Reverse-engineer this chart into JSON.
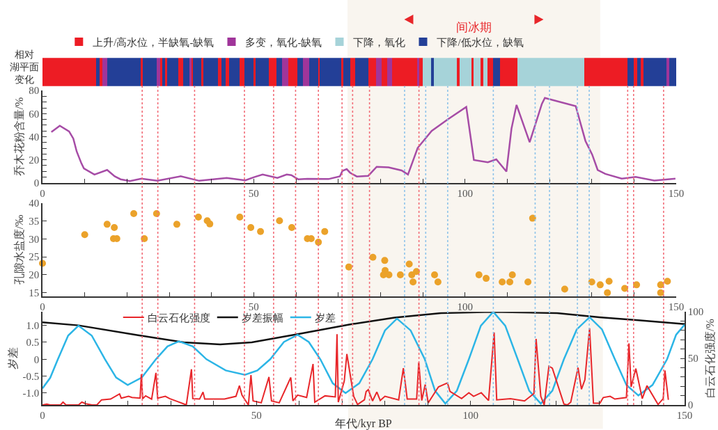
{
  "chart_data": [
    {
      "type": "bar",
      "orientation": "horizontal",
      "stacked": true,
      "ylabel": "相对湖平面变化",
      "xlim": [
        0,
        150
      ],
      "legend": "top",
      "tick_labels": false,
      "categories": [
        null
      ],
      "series": [
        {
          "name": "上升/高水位，半缺氧-缺氧",
          "color": "#ed1c24",
          "values": [
            12.7
          ]
        },
        {
          "color": "#233f97",
          "values": [
            0.8
          ]
        },
        {
          "color": "#ed1c24",
          "values": [
            0.7
          ]
        },
        {
          "name": "多变，氧化-缺氧",
          "color": "#a0359a",
          "values": [
            1.1
          ]
        },
        {
          "color": "#233f97",
          "values": [
            7.9
          ]
        },
        {
          "color": "#ed1c24",
          "values": [
            0.6
          ]
        },
        {
          "color": "#233f97",
          "values": [
            3.3
          ]
        },
        {
          "color": "#a0359a",
          "values": [
            0.7
          ]
        },
        {
          "color": "#ed1c24",
          "values": [
            0.6
          ]
        },
        {
          "color": "#233f97",
          "values": [
            0.6
          ]
        },
        {
          "color": "#ed1c24",
          "values": [
            0.5
          ]
        },
        {
          "color": "#233f97",
          "values": [
            2.7
          ]
        },
        {
          "color": "#ed1c24",
          "values": [
            1.1
          ]
        },
        {
          "color": "#233f97",
          "values": [
            1.4
          ]
        },
        {
          "color": "#a0359a",
          "values": [
            0.5
          ]
        },
        {
          "color": "#ed1c24",
          "values": [
            0.4
          ]
        },
        {
          "color": "#233f97",
          "values": [
            2.1
          ]
        },
        {
          "color": "#ed1c24",
          "values": [
            0.3
          ]
        },
        {
          "color": "#233f97",
          "values": [
            3.5
          ]
        },
        {
          "color": "#ed1c24",
          "values": [
            0.8
          ]
        },
        {
          "color": "#233f97",
          "values": [
            1.1
          ]
        },
        {
          "color": "#ed1c24",
          "values": [
            0.8
          ]
        },
        {
          "color": "#233f97",
          "values": [
            2.5
          ]
        },
        {
          "color": "#ed1c24",
          "values": [
            1.1
          ]
        },
        {
          "color": "#233f97",
          "values": [
            2.2
          ]
        },
        {
          "color": "#ed1c24",
          "values": [
            0.5
          ]
        },
        {
          "color": "#233f97",
          "values": [
            3.1
          ]
        },
        {
          "color": "#ed1c24",
          "values": [
            1.8
          ]
        },
        {
          "color": "#233f97",
          "values": [
            1.3
          ]
        },
        {
          "color": "#a0359a",
          "values": [
            1.4
          ]
        },
        {
          "color": "#ed1c24",
          "values": [
            2.2
          ]
        },
        {
          "color": "#233f97",
          "values": [
            1.3
          ]
        },
        {
          "color": "#a0359a",
          "values": [
            1.6
          ]
        },
        {
          "color": "#233f97",
          "values": [
            2.0
          ]
        },
        {
          "color": "#ed1c24",
          "values": [
            0.4
          ]
        },
        {
          "color": "#233f97",
          "values": [
            5.1
          ]
        },
        {
          "color": "#ed1c24",
          "values": [
            0.5
          ]
        },
        {
          "color": "#233f97",
          "values": [
            1.7
          ]
        },
        {
          "color": "#ed1c24",
          "values": [
            1.1
          ]
        },
        {
          "color": "#233f97",
          "values": [
            3.2
          ]
        },
        {
          "color": "#ed1c24",
          "values": [
            1.7
          ]
        },
        {
          "color": "#a0359a",
          "values": [
            1.4
          ]
        },
        {
          "color": "#ed1c24",
          "values": [
            1.3
          ]
        },
        {
          "color": "#a0359a",
          "values": [
            1.1
          ]
        },
        {
          "color": "#ed1c24",
          "values": [
            6.0
          ]
        },
        {
          "color": "#a0359a",
          "values": [
            0.5
          ]
        },
        {
          "color": "#ed1c24",
          "values": [
            0.8
          ]
        },
        {
          "name": "下降，氧化",
          "color": "#a6d3d9",
          "values": [
            2.0
          ]
        },
        {
          "name": "下降/低水位，缺氧",
          "color": "#233f97",
          "values": [
            0.7
          ]
        },
        {
          "color": "#a6d3d9",
          "values": [
            5.3
          ]
        },
        {
          "color": "#ed1c24",
          "values": [
            0.7
          ]
        },
        {
          "color": "#a6d3d9",
          "values": [
            2.8
          ]
        },
        {
          "color": "#ed1c24",
          "values": [
            0.5
          ]
        },
        {
          "color": "#a6d3d9",
          "values": [
            1.7
          ]
        },
        {
          "color": "#ed1c24",
          "values": [
            0.6
          ]
        },
        {
          "color": "#a6d3d9",
          "values": [
            1.1
          ]
        },
        {
          "color": "#ed1c24",
          "values": [
            1.3
          ]
        },
        {
          "color": "#233f97",
          "values": [
            1.6
          ]
        },
        {
          "color": "#ed1c24",
          "values": [
            4.1
          ]
        },
        {
          "color": "#a6d3d9",
          "values": [
            15.9
          ]
        },
        {
          "color": "#ed1c24",
          "values": [
            10.2
          ]
        },
        {
          "color": "#233f97",
          "values": [
            1.5
          ]
        },
        {
          "color": "#ed1c24",
          "values": [
            0.8
          ]
        },
        {
          "color": "#233f97",
          "values": [
            0.8
          ]
        },
        {
          "color": "#ed1c24",
          "values": [
            0.7
          ]
        },
        {
          "color": "#233f97",
          "values": [
            5.3
          ]
        },
        {
          "color": "#a0359a",
          "values": [
            0.8
          ]
        },
        {
          "color": "#233f97",
          "values": [
            1.6
          ]
        }
      ],
      "bands": [
        {
          "axis": "x",
          "from": 72.2,
          "to": 132,
          "label": "间冰期",
          "color": "#f9f5ef"
        }
      ]
    },
    {
      "type": "line",
      "ylabel": "乔木花粉含量/%",
      "xlim": [
        0,
        150
      ],
      "ylim": [
        0,
        80
      ],
      "xticks": [
        0,
        {
          "value": 10,
          "label": null
        },
        {
          "value": 20,
          "label": null
        },
        {
          "value": 30,
          "label": null
        },
        {
          "value": 40,
          "label": null
        },
        50,
        {
          "value": 60,
          "label": null
        },
        {
          "value": 70,
          "label": null
        },
        {
          "value": 80,
          "label": null
        },
        {
          "value": 90,
          "label": null
        },
        100,
        {
          "value": 110,
          "label": null
        },
        {
          "value": 120,
          "label": null
        },
        {
          "value": 130,
          "label": null
        },
        {
          "value": 140,
          "label": null
        },
        150
      ],
      "yticks": [
        0,
        {
          "value": 5,
          "label": null
        },
        {
          "value": 10,
          "label": null
        },
        {
          "value": 15,
          "label": null
        },
        20,
        {
          "value": 25,
          "label": null
        },
        {
          "value": 30,
          "label": null
        },
        {
          "value": 35,
          "label": null
        },
        40,
        {
          "value": 45,
          "label": null
        },
        {
          "value": 50,
          "label": null
        },
        {
          "value": 55,
          "label": null
        },
        60,
        {
          "value": 65,
          "label": null
        },
        {
          "value": 70,
          "label": null
        },
        {
          "value": 75,
          "label": null
        },
        80
      ],
      "series": [
        {
          "color": "#a64ca6",
          "x": [
            2.1,
            4.1,
            6.3,
            7.3,
            8.1,
            9.2,
            9.8,
            12.3,
            15.3,
            17.1,
            18.5,
            20.7,
            23.4,
            27.2,
            32.7,
            37.1,
            43.6,
            48,
            50.2,
            52.1,
            55.6,
            57.8,
            58.9,
            60.5,
            62.7,
            67.7,
            70.4,
            71,
            72,
            72.8,
            74.4,
            77.1,
            79.1,
            81.9,
            85,
            86.5,
            88.8,
            92.1,
            96,
            100.3,
            102.1,
            105.4,
            107.4,
            109.8,
            111,
            112.2,
            115.3,
            118.2,
            118.9,
            126.2,
            128.5,
            130.1,
            131.4,
            133.2,
            137.1,
            140.4,
            144.8,
            149.8
          ],
          "values": [
            44,
            49.5,
            44.6,
            38.4,
            27.2,
            17,
            12.5,
            7.2,
            11.2,
            5.7,
            3.1,
            1.6,
            3.7,
            1.8,
            5.7,
            1.8,
            4.3,
            2.2,
            5.1,
            7.2,
            4.3,
            7.2,
            6.7,
            3.1,
            3.5,
            3.3,
            5.7,
            10.4,
            11.9,
            8.8,
            5.5,
            6.1,
            13.9,
            13.5,
            10.8,
            7.2,
            30.3,
            45,
            55.2,
            65.8,
            19.8,
            17.8,
            20.4,
            9.8,
            47,
            67.5,
            35.2,
            68.5,
            73.6,
            66.5,
            36.4,
            24.5,
            11.2,
            7.8,
            3.7,
            5.1,
            2,
            3.7
          ]
        }
      ],
      "ref_lines": [
        {
          "axis": "x",
          "value": 23.6,
          "color": "#f26d78",
          "line_style": "dotted"
        },
        {
          "axis": "x",
          "value": 27.3,
          "color": "#f26d78",
          "line_style": "dotted"
        },
        {
          "axis": "x",
          "value": 36.0,
          "color": "#f26d78",
          "line_style": "dotted"
        },
        {
          "axis": "x",
          "value": 47.8,
          "color": "#f26d78",
          "line_style": "dotted"
        },
        {
          "axis": "x",
          "value": 54.7,
          "color": "#f26d78",
          "line_style": "dotted"
        },
        {
          "axis": "x",
          "value": 59.9,
          "color": "#f26d78",
          "line_style": "dotted"
        },
        {
          "axis": "x",
          "value": 65.3,
          "color": "#f26d78",
          "line_style": "dotted"
        },
        {
          "axis": "x",
          "value": 70.9,
          "color": "#f26d78",
          "line_style": "dotted"
        },
        {
          "axis": "x",
          "value": 73.4,
          "color": "#f26d78",
          "line_style": "dotted"
        },
        {
          "axis": "x",
          "value": 77.4,
          "color": "#f26d78",
          "line_style": "dotted"
        },
        {
          "axis": "x",
          "value": 89.1,
          "color": "#f26d78",
          "line_style": "dotted"
        },
        {
          "axis": "x",
          "value": 138.5,
          "color": "#f26d78",
          "line_style": "dotted"
        },
        {
          "axis": "x",
          "value": 139.9,
          "color": "#f26d78",
          "line_style": "dotted"
        },
        {
          "axis": "x",
          "value": 147.0,
          "color": "#f26d78",
          "line_style": "dotted"
        },
        {
          "axis": "x",
          "value": 85.7,
          "color": "#8ec3ea",
          "line_style": "dotted"
        },
        {
          "axis": "x",
          "value": 90.7,
          "color": "#8ec3ea",
          "line_style": "dotted"
        },
        {
          "axis": "x",
          "value": 95.9,
          "color": "#8ec3ea",
          "line_style": "dotted"
        },
        {
          "axis": "x",
          "value": 106.7,
          "color": "#8ec3ea",
          "line_style": "dotted"
        },
        {
          "axis": "x",
          "value": 116.6,
          "color": "#8ec3ea",
          "line_style": "dotted"
        },
        {
          "axis": "x",
          "value": 120.0,
          "color": "#8ec3ea",
          "line_style": "dotted"
        },
        {
          "axis": "x",
          "value": 126.6,
          "color": "#8ec3ea",
          "line_style": "dotted"
        },
        {
          "axis": "x",
          "value": 129.4,
          "color": "#8ec3ea",
          "line_style": "dotted"
        }
      ],
      "bands": [
        {
          "axis": "x",
          "from": 72.2,
          "to": 132,
          "color": "#f9f5ef"
        }
      ]
    },
    {
      "type": "scatter",
      "ylabel": "孔隙水盐度/‰",
      "xlim": [
        0,
        150
      ],
      "ylim": [
        14,
        40
      ],
      "marker": "circle",
      "xticks": [
        0,
        {
          "value": 10,
          "label": null
        },
        {
          "value": 20,
          "label": null
        },
        {
          "value": 30,
          "label": null
        },
        {
          "value": 40,
          "label": null
        },
        50,
        {
          "value": 60,
          "label": null
        },
        {
          "value": 70,
          "label": null
        },
        {
          "value": 80,
          "label": null
        },
        {
          "value": 90,
          "label": null
        },
        100,
        {
          "value": 110,
          "label": null
        },
        {
          "value": 120,
          "label": null
        },
        {
          "value": 130,
          "label": null
        },
        {
          "value": 140,
          "label": null
        },
        150
      ],
      "yticks": [
        15,
        20,
        25,
        30,
        35,
        40
      ],
      "bands": [
        {
          "axis": "x",
          "from": 72.2,
          "to": 132,
          "color": "#f9f5ef"
        }
      ],
      "series": [
        {
          "color": "#eba22a",
          "x": [
            0,
            10,
            15.3,
            17,
            16.8,
            17.6,
            21.6,
            24.1,
            27,
            31.8,
            36.9,
            39,
            39.6,
            46.7,
            49.3,
            51.6,
            56.1,
            59,
            62.7,
            63.6,
            65.3,
            66.8,
            72.5,
            78.2,
            81,
            81.1,
            80.7,
            82,
            84.7,
            86.8,
            87.4,
            87.7,
            88.5,
            92.8,
            93.6,
            103.3,
            105,
            108.8,
            110.6,
            111.2,
            114.9,
            116,
            123.6,
            130,
            132,
            133.7,
            134.1,
            137.8,
            140.6,
            146.3,
            146.3,
            147.9
          ],
          "values": [
            23.2,
            31.2,
            34.1,
            33.2,
            30.1,
            30.1,
            37.1,
            30.1,
            37.1,
            34.1,
            36.1,
            35.1,
            34.2,
            36.1,
            33.2,
            32.1,
            35.1,
            33.2,
            30.1,
            30.1,
            29.1,
            32.1,
            22.2,
            24.9,
            24,
            21.2,
            20,
            20,
            20,
            23,
            20,
            18,
            20.9,
            20,
            18,
            20,
            19,
            18,
            18,
            20,
            18,
            35.8,
            16,
            18,
            17.2,
            15,
            18.2,
            16.2,
            17.2,
            17.2,
            15,
            18.2
          ]
        }
      ]
    },
    {
      "type": "line",
      "ylabel": "岁差",
      "y2label": "白云石化强度/%",
      "xlabel": "年代/kyr BP",
      "xlim": [
        0,
        150
      ],
      "ylim": [
        -1.35,
        1.4
      ],
      "y2lim": [
        0,
        100
      ],
      "legend": "top left",
      "xticks": [
        0,
        {
          "value": 10,
          "label": null
        },
        {
          "value": 20,
          "label": null
        },
        {
          "value": 30,
          "label": null
        },
        {
          "value": 40,
          "label": null
        },
        50,
        {
          "value": 60,
          "label": null
        },
        {
          "value": 70,
          "label": null
        },
        {
          "value": 80,
          "label": null
        },
        {
          "value": 90,
          "label": null
        },
        100,
        {
          "value": 110,
          "label": null
        },
        {
          "value": 120,
          "label": null
        },
        {
          "value": 130,
          "label": null
        },
        {
          "value": 140,
          "label": null
        },
        150
      ],
      "yticks": [
        {
          "value": -1,
          "label": "-1.0"
        },
        -0.5,
        0,
        0.5,
        {
          "value": 1,
          "label": "1.0"
        }
      ],
      "bands": [
        {
          "axis": "x",
          "from": 71.4,
          "to": 130.9,
          "color": "#f9f5ef"
        }
      ],
      "y2ticks": [
        0,
        {
          "value": 10,
          "label": null
        },
        {
          "value": 20,
          "label": null
        },
        {
          "value": 30,
          "label": null
        },
        {
          "value": 40,
          "label": null
        },
        50,
        {
          "value": 60,
          "label": null
        },
        {
          "value": 70,
          "label": null
        },
        {
          "value": 80,
          "label": null
        },
        {
          "value": 90,
          "label": null
        },
        100
      ],
      "series": [
        {
          "name": "白云石化强度",
          "color": "#e8262a",
          "axis": "y2",
          "x": [
            0,
            1,
            1.8,
            4.2,
            4.8,
            5.5,
            8.4,
            9.2,
            10.1,
            11.6,
            12.7,
            13.8,
            15.9,
            18,
            18.4,
            20.1,
            20.9,
            22.8,
            23.1,
            23.4,
            24.1,
            25.5,
            26.5,
            26.9,
            28.7,
            29.7,
            32.9,
            33.6,
            34.8,
            35.1,
            36.7,
            37.5,
            37.9,
            42.5,
            45.2,
            46,
            46.6,
            48.1,
            48.7,
            49.2,
            51.1,
            52.9,
            53.5,
            55.3,
            58,
            58.5,
            59.6,
            61.7,
            63.2,
            63.6,
            66,
            68.4,
            68.8,
            69.1,
            70.5,
            71.1,
            72.7,
            73.6,
            75.2,
            75.6,
            76.1,
            77.1,
            78.1,
            78.9,
            80,
            83.2,
            84.3,
            85.2,
            87.4,
            87.9,
            88.6,
            89.4,
            90.1,
            92.5,
            94.6,
            95.2,
            97.9,
            99.6,
            100.7,
            102.5,
            104.2,
            105.5,
            106.1,
            109.3,
            112.6,
            114.8,
            115.3,
            116.4,
            117.2,
            118.3,
            119.1,
            121.8,
            122.6,
            123.4,
            125.1,
            125.9,
            126.7,
            127.8,
            128.7,
            130.2,
            131,
            132.6,
            133.7,
            136.4,
            137,
            137.5,
            138.6,
            140.1,
            141.2,
            143.8,
            145,
            145.4,
            146.2
          ],
          "values": [
            0,
            1,
            0,
            0,
            3,
            0,
            0,
            3,
            1.3,
            0,
            0,
            5.5,
            6.3,
            11.8,
            7.3,
            9.3,
            8,
            7.3,
            33,
            6.8,
            9.8,
            6.3,
            34.5,
            7.3,
            9.3,
            6.8,
            1.3,
            0,
            38.3,
            6.8,
            6.3,
            13.9,
            6.3,
            6.3,
            9.3,
            20.7,
            10.6,
            0,
            32,
            4.3,
            2.3,
            30,
            4.3,
            2.3,
            29.5,
            4.3,
            10.6,
            8,
            44,
            3,
            9.8,
            8.6,
            76,
            3,
            25.7,
            54.7,
            9.3,
            0.5,
            5.5,
            14.4,
            16.4,
            4.3,
            13.9,
            4.8,
            9.3,
            5.5,
            39.5,
            6.3,
            6.3,
            45.8,
            4.8,
            21.9,
            2.3,
            19.4,
            23.7,
            14.4,
            6.8,
            13.1,
            9.3,
            13.1,
            4.8,
            77.8,
            5.5,
            6.8,
            4.3,
            12.3,
            71,
            9.3,
            0,
            41.6,
            39.5,
            1,
            0,
            3,
            40,
            16.9,
            27,
            82.4,
            1.8,
            1.8,
            8,
            9.3,
            6.3,
            8,
            66,
            19.4,
            39,
            6.8,
            20.7,
            0.5,
            6.8,
            37,
            5.5
          ]
        },
        {
          "name": "岁差振幅",
          "color": "#111111",
          "x": [
            0,
            8.4,
            22.3,
            33,
            41.5,
            48.9,
            59.6,
            71.4,
            82.2,
            93.1,
            105,
            120.2,
            130.1,
            139.2,
            150
          ],
          "values": [
            1.09,
            1.0,
            0.71,
            0.5,
            0.44,
            0.5,
            0.74,
            1.02,
            1.23,
            1.36,
            1.4,
            1.36,
            1.24,
            1.15,
            1.04
          ]
        },
        {
          "name": "岁差",
          "color": "#2cb5e6",
          "x": [
            0,
            1.8,
            3.6,
            6.0,
            8.4,
            11.5,
            14.6,
            17.2,
            19.9,
            23.2,
            26.5,
            29.2,
            31.9,
            35.1,
            38.3,
            42.8,
            47.3,
            50.2,
            53.2,
            56.4,
            59.6,
            62.2,
            64.9,
            67.8,
            70.8,
            74.0,
            77.1,
            80.0,
            82.8,
            86.0,
            89.3,
            91.7,
            94.1,
            96.8,
            99.6,
            102.4,
            105.3,
            108.1,
            111,
            113.7,
            116.4,
            119.1,
            121.8,
            124.8,
            127.8,
            130.7,
            133.7,
            136.4,
            139.2,
            142.5,
            145.9,
            148,
            150
          ],
          "values": [
            -0.86,
            -0.55,
            0,
            0.7,
            0.99,
            0.7,
            0,
            -0.54,
            -0.76,
            -0.54,
            0,
            0.38,
            0.53,
            0.38,
            0,
            -0.33,
            -0.46,
            -0.33,
            0,
            0.51,
            0.72,
            0.51,
            0,
            -0.71,
            -1.0,
            -0.71,
            0,
            0.85,
            1.2,
            0.85,
            0,
            -0.93,
            -1.31,
            -0.93,
            0,
            0.99,
            1.4,
            0.99,
            0,
            -0.93,
            -1.31,
            -0.93,
            0,
            0.88,
            1.24,
            0.88,
            0,
            -0.76,
            -1.07,
            -0.76,
            0,
            0.72,
            1.02
          ]
        }
      ]
    }
  ]
}
